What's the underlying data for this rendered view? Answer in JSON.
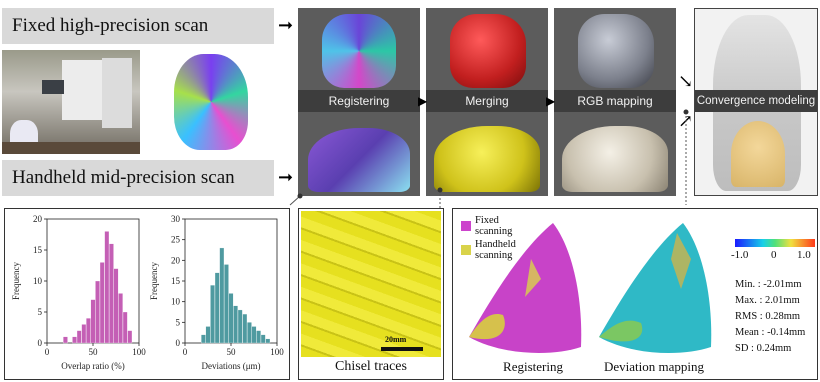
{
  "labels": {
    "fixed_scan": "Fixed high-precision scan",
    "handheld_scan": "Handheld mid-precision scan"
  },
  "stages": [
    "Registering",
    "Merging",
    "RGB mapping"
  ],
  "convergence": "Convergence modeling",
  "hist_overlap": {
    "ylabel": "Frequency",
    "xlabel": "Overlap ratio (%)",
    "yticks": [
      "0",
      "5",
      "10",
      "15",
      "20"
    ],
    "xticks": [
      "0",
      "50",
      "100"
    ],
    "color": "#c45fb5",
    "chart_data": {
      "type": "bar",
      "x": [
        20,
        30,
        35,
        40,
        45,
        50,
        55,
        60,
        65,
        70,
        75,
        80,
        85,
        90
      ],
      "values": [
        1,
        1,
        2,
        3,
        4,
        7,
        10,
        13,
        18,
        16,
        12,
        8,
        5,
        2
      ],
      "ylim": [
        0,
        20
      ],
      "xlim": [
        0,
        100
      ]
    }
  },
  "hist_dev": {
    "ylabel": "Frequency",
    "xlabel": "Deviations (μm)",
    "yticks": [
      "0",
      "5",
      "10",
      "15",
      "20",
      "25",
      "30"
    ],
    "xticks": [
      "0",
      "50",
      "100"
    ],
    "color": "#4f9aa0",
    "chart_data": {
      "type": "bar",
      "x": [
        20,
        25,
        30,
        35,
        40,
        45,
        50,
        55,
        60,
        65,
        70,
        75,
        80,
        85,
        90
      ],
      "values": [
        2,
        4,
        14,
        17,
        23,
        19,
        12,
        9,
        8,
        7,
        5,
        4,
        3,
        2,
        1
      ],
      "ylim": [
        0,
        30
      ],
      "xlim": [
        0,
        100
      ]
    }
  },
  "chisel": {
    "caption": "Chisel traces",
    "scale": "20mm"
  },
  "deviation_panel": {
    "legend_fixed": "Fixed scanning",
    "legend_handheld": "Handheld scanning",
    "fixed_color": "#cc44cc",
    "handheld_color": "#d9d34a",
    "caption_left": "Registering",
    "caption_right": "Deviation mapping",
    "colorbar_ticks": [
      "-1.0",
      "0",
      "1.0"
    ],
    "stats": [
      "Min. : -2.01mm",
      "Max. : 2.01mm",
      "RMS : 0.28mm",
      "Mean : -0.14mm",
      "SD : 0.24mm"
    ]
  }
}
